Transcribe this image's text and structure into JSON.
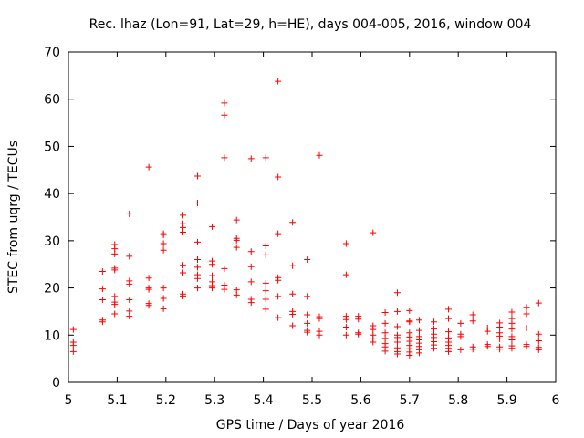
{
  "chart_data": {
    "type": "scatter",
    "title": "Rec. lhaz (Lon=91, Lat=29, h=HE), days 004-005, 2016, window 004",
    "xlabel": "GPS time / Days of year 2016",
    "ylabel": "STEC from uqrg / TECUs",
    "xlim": [
      5,
      6
    ],
    "ylim": [
      0,
      70
    ],
    "x_ticks": [
      5,
      5.1,
      5.2,
      5.3,
      5.4,
      5.5,
      5.6,
      5.7,
      5.8,
      5.9,
      6
    ],
    "x_tick_labels": [
      "5",
      "5.1",
      "5.2",
      "5.3",
      "5.4",
      "5.5",
      "5.6",
      "5.7",
      "5.8",
      "5.9",
      "6"
    ],
    "y_ticks": [
      0,
      10,
      20,
      30,
      40,
      50,
      60,
      70
    ],
    "y_tick_labels": [
      "0",
      "10",
      "20",
      "30",
      "40",
      "50",
      "60",
      "70"
    ],
    "marker": "plus",
    "color": "#ff0000",
    "grid": false,
    "series": [
      {
        "name": "STEC",
        "points": [
          [
            5.01,
            11.2
          ],
          [
            5.01,
            8.5
          ],
          [
            5.01,
            7.8
          ],
          [
            5.01,
            6.5
          ],
          [
            5.07,
            23.5
          ],
          [
            5.07,
            19.8
          ],
          [
            5.07,
            17.5
          ],
          [
            5.07,
            13.2
          ],
          [
            5.07,
            12.8
          ],
          [
            5.095,
            29.2
          ],
          [
            5.095,
            28.3
          ],
          [
            5.095,
            27.2
          ],
          [
            5.095,
            24.2
          ],
          [
            5.095,
            23.8
          ],
          [
            5.095,
            18.2
          ],
          [
            5.095,
            17.0
          ],
          [
            5.095,
            16.5
          ],
          [
            5.095,
            14.5
          ],
          [
            5.125,
            35.7
          ],
          [
            5.125,
            26.7
          ],
          [
            5.125,
            21.5
          ],
          [
            5.125,
            20.8
          ],
          [
            5.125,
            17.5
          ],
          [
            5.125,
            15.1
          ],
          [
            5.125,
            14.0
          ],
          [
            5.165,
            45.6
          ],
          [
            5.165,
            22.1
          ],
          [
            5.165,
            20.0
          ],
          [
            5.165,
            19.7
          ],
          [
            5.165,
            16.7
          ],
          [
            5.165,
            16.3
          ],
          [
            5.195,
            31.5
          ],
          [
            5.195,
            31.2
          ],
          [
            5.195,
            29.4
          ],
          [
            5.195,
            28.0
          ],
          [
            5.195,
            20.0
          ],
          [
            5.195,
            17.8
          ],
          [
            5.195,
            15.6
          ],
          [
            5.235,
            35.4
          ],
          [
            5.235,
            33.6
          ],
          [
            5.235,
            32.8
          ],
          [
            5.235,
            31.8
          ],
          [
            5.235,
            24.8
          ],
          [
            5.235,
            23.2
          ],
          [
            5.235,
            18.7
          ],
          [
            5.235,
            18.3
          ],
          [
            5.265,
            43.7
          ],
          [
            5.265,
            38.0
          ],
          [
            5.265,
            29.7
          ],
          [
            5.265,
            26.0
          ],
          [
            5.265,
            24.4
          ],
          [
            5.265,
            22.8
          ],
          [
            5.265,
            22.0
          ],
          [
            5.265,
            20.0
          ],
          [
            5.295,
            33.0
          ],
          [
            5.295,
            25.7
          ],
          [
            5.295,
            25.0
          ],
          [
            5.295,
            22.6
          ],
          [
            5.295,
            21.3
          ],
          [
            5.295,
            20.5
          ],
          [
            5.295,
            20.0
          ],
          [
            5.32,
            59.2
          ],
          [
            5.32,
            56.6
          ],
          [
            5.32,
            47.6
          ],
          [
            5.32,
            24.1
          ],
          [
            5.32,
            20.6
          ],
          [
            5.32,
            19.7
          ],
          [
            5.345,
            34.4
          ],
          [
            5.345,
            30.5
          ],
          [
            5.345,
            30.1
          ],
          [
            5.345,
            28.6
          ],
          [
            5.345,
            19.6
          ],
          [
            5.345,
            18.5
          ],
          [
            5.375,
            47.4
          ],
          [
            5.375,
            27.7
          ],
          [
            5.375,
            24.5
          ],
          [
            5.375,
            21.3
          ],
          [
            5.375,
            17.6
          ],
          [
            5.375,
            16.9
          ],
          [
            5.405,
            47.6
          ],
          [
            5.405,
            28.9
          ],
          [
            5.405,
            27.0
          ],
          [
            5.405,
            21.0
          ],
          [
            5.405,
            19.4
          ],
          [
            5.405,
            17.6
          ],
          [
            5.405,
            15.5
          ],
          [
            5.43,
            63.8
          ],
          [
            5.43,
            43.5
          ],
          [
            5.43,
            31.5
          ],
          [
            5.43,
            22.2
          ],
          [
            5.43,
            21.6
          ],
          [
            5.43,
            18.2
          ],
          [
            5.43,
            13.7
          ],
          [
            5.46,
            33.9
          ],
          [
            5.46,
            24.7
          ],
          [
            5.46,
            18.7
          ],
          [
            5.46,
            15.0
          ],
          [
            5.46,
            14.4
          ],
          [
            5.46,
            12.0
          ],
          [
            5.49,
            26.0
          ],
          [
            5.49,
            18.2
          ],
          [
            5.49,
            14.3
          ],
          [
            5.49,
            12.5
          ],
          [
            5.49,
            11.0
          ],
          [
            5.49,
            10.6
          ],
          [
            5.515,
            48.1
          ],
          [
            5.515,
            13.9
          ],
          [
            5.515,
            13.5
          ],
          [
            5.515,
            10.8
          ],
          [
            5.515,
            10.0
          ],
          [
            5.57,
            29.4
          ],
          [
            5.57,
            22.8
          ],
          [
            5.57,
            14.0
          ],
          [
            5.57,
            13.3
          ],
          [
            5.57,
            11.7
          ],
          [
            5.57,
            10.0
          ],
          [
            5.595,
            14.0
          ],
          [
            5.595,
            13.4
          ],
          [
            5.595,
            10.5
          ],
          [
            5.595,
            10.2
          ],
          [
            5.625,
            31.7
          ],
          [
            5.625,
            12.0
          ],
          [
            5.625,
            11.2
          ],
          [
            5.625,
            10.0
          ],
          [
            5.625,
            9.2
          ],
          [
            5.625,
            8.5
          ],
          [
            5.65,
            14.8
          ],
          [
            5.65,
            12.5
          ],
          [
            5.65,
            10.5
          ],
          [
            5.65,
            9.3
          ],
          [
            5.65,
            8.2
          ],
          [
            5.65,
            7.5
          ],
          [
            5.65,
            6.6
          ],
          [
            5.675,
            19.0
          ],
          [
            5.675,
            15.0
          ],
          [
            5.675,
            11.8
          ],
          [
            5.675,
            10.0
          ],
          [
            5.675,
            9.5
          ],
          [
            5.675,
            8.5
          ],
          [
            5.675,
            7.3
          ],
          [
            5.675,
            6.5
          ],
          [
            5.675,
            6.0
          ],
          [
            5.7,
            15.2
          ],
          [
            5.7,
            13.0
          ],
          [
            5.7,
            12.8
          ],
          [
            5.7,
            10.5
          ],
          [
            5.7,
            9.6
          ],
          [
            5.7,
            8.7
          ],
          [
            5.7,
            7.8
          ],
          [
            5.7,
            7.1
          ],
          [
            5.7,
            6.4
          ],
          [
            5.7,
            5.7
          ],
          [
            5.72,
            13.2
          ],
          [
            5.72,
            11.0
          ],
          [
            5.72,
            9.7
          ],
          [
            5.72,
            9.0
          ],
          [
            5.72,
            8.3
          ],
          [
            5.72,
            7.6
          ],
          [
            5.72,
            6.9
          ],
          [
            5.72,
            6.2
          ],
          [
            5.75,
            12.8
          ],
          [
            5.75,
            11.3
          ],
          [
            5.75,
            10.2
          ],
          [
            5.75,
            9.5
          ],
          [
            5.75,
            8.6
          ],
          [
            5.75,
            7.9
          ],
          [
            5.75,
            7.2
          ],
          [
            5.78,
            15.5
          ],
          [
            5.78,
            13.5
          ],
          [
            5.78,
            10.7
          ],
          [
            5.78,
            9.4
          ],
          [
            5.78,
            8.5
          ],
          [
            5.78,
            7.8
          ],
          [
            5.78,
            7.2
          ],
          [
            5.78,
            6.5
          ],
          [
            5.805,
            12.5
          ],
          [
            5.805,
            10.2
          ],
          [
            5.805,
            9.7
          ],
          [
            5.805,
            6.9
          ],
          [
            5.83,
            14.3
          ],
          [
            5.83,
            13.0
          ],
          [
            5.83,
            7.5
          ],
          [
            5.83,
            7.0
          ],
          [
            5.86,
            11.5
          ],
          [
            5.86,
            10.8
          ],
          [
            5.86,
            8.0
          ],
          [
            5.86,
            7.6
          ],
          [
            5.885,
            12.6
          ],
          [
            5.885,
            11.7
          ],
          [
            5.885,
            10.5
          ],
          [
            5.885,
            9.8
          ],
          [
            5.885,
            9.2
          ],
          [
            5.885,
            7.5
          ],
          [
            5.885,
            7.0
          ],
          [
            5.91,
            14.9
          ],
          [
            5.91,
            13.5
          ],
          [
            5.91,
            12.5
          ],
          [
            5.91,
            11.3
          ],
          [
            5.91,
            9.7
          ],
          [
            5.91,
            9.0
          ],
          [
            5.91,
            7.7
          ],
          [
            5.91,
            7.2
          ],
          [
            5.94,
            15.9
          ],
          [
            5.94,
            14.5
          ],
          [
            5.94,
            11.5
          ],
          [
            5.94,
            8.0
          ],
          [
            5.94,
            7.6
          ],
          [
            5.965,
            16.8
          ],
          [
            5.965,
            10.2
          ],
          [
            5.965,
            8.8
          ],
          [
            5.965,
            7.4
          ],
          [
            5.965,
            6.9
          ]
        ]
      }
    ]
  }
}
